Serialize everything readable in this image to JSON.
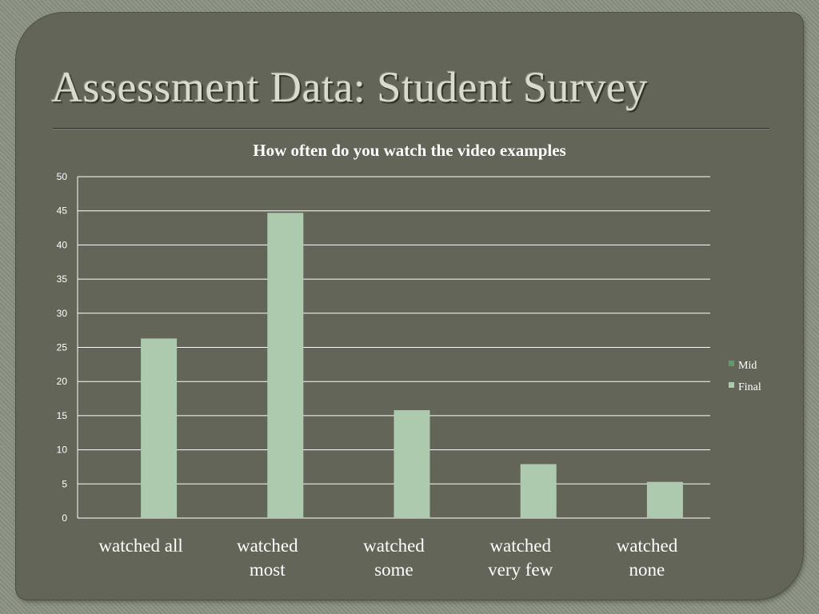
{
  "slide": {
    "title": "Assessment Data: Student Survey"
  },
  "chart_data": {
    "type": "bar",
    "title": "How often do you watch the video examples",
    "categories": [
      [
        "watched all"
      ],
      [
        "watched",
        "most"
      ],
      [
        "watched",
        "some"
      ],
      [
        "watched",
        "very few"
      ],
      [
        "watched",
        "none"
      ]
    ],
    "series": [
      {
        "name": "Mid",
        "color": "#5e9a6a",
        "values": [
          0,
          0,
          0,
          0,
          0
        ]
      },
      {
        "name": "Final",
        "color": "#adcaae",
        "values": [
          26.3,
          44.7,
          15.8,
          7.9,
          5.3
        ]
      }
    ],
    "ylim": [
      0,
      50
    ],
    "yticks": [
      0,
      5,
      10,
      15,
      20,
      25,
      30,
      35,
      40,
      45,
      50
    ],
    "xlabel": "",
    "ylabel": "",
    "grid": true,
    "legend_position": "right"
  }
}
